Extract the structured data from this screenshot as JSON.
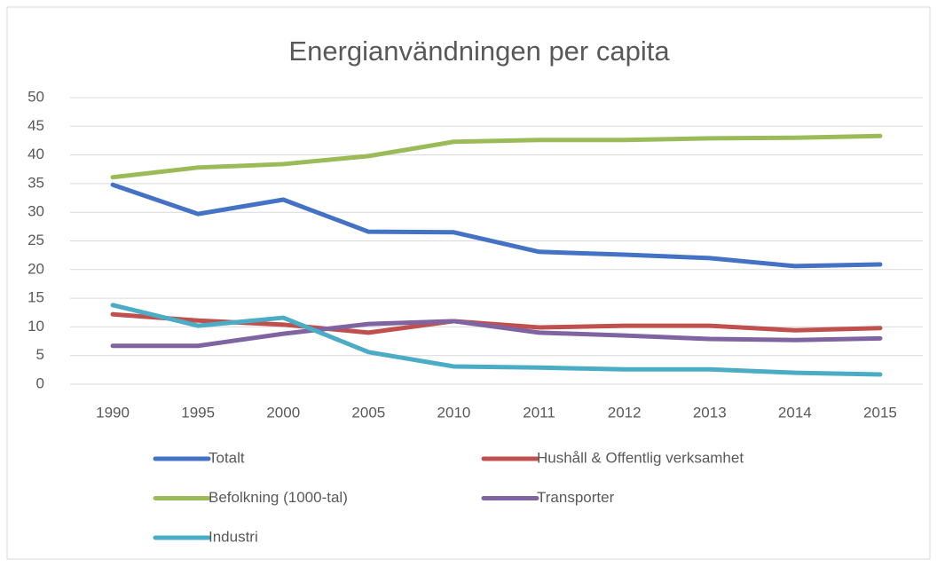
{
  "chart_data": {
    "type": "line",
    "title": "Energianvändningen per capita",
    "categories": [
      "1990",
      "1995",
      "2000",
      "2005",
      "2010",
      "2011",
      "2012",
      "2013",
      "2014",
      "2015"
    ],
    "series": [
      {
        "name": "Totalt",
        "color": "#4472c4",
        "values": [
          34.8,
          29.7,
          32.2,
          26.6,
          26.5,
          23.1,
          22.6,
          22.0,
          20.6,
          20.9
        ]
      },
      {
        "name": "Hushåll & Offentlig verksamhet",
        "color": "#c0504d",
        "values": [
          12.2,
          11.1,
          10.4,
          9.0,
          11.0,
          9.9,
          10.2,
          10.2,
          9.4,
          9.8
        ]
      },
      {
        "name": "Befolkning (1000-tal)",
        "color": "#9bbb59",
        "values": [
          36.1,
          37.8,
          38.4,
          39.8,
          42.3,
          42.6,
          42.6,
          42.9,
          43.0,
          43.3
        ]
      },
      {
        "name": "Transporter",
        "color": "#8064a2",
        "values": [
          6.7,
          6.7,
          8.8,
          10.5,
          11.0,
          9.0,
          8.5,
          7.9,
          7.7,
          8.0
        ]
      },
      {
        "name": "Industri",
        "color": "#4bacc6",
        "values": [
          13.8,
          10.2,
          11.6,
          5.6,
          3.1,
          2.9,
          2.6,
          2.6,
          2.0,
          1.7
        ]
      }
    ],
    "ylim": [
      0,
      50
    ],
    "yticks": [
      0,
      5,
      10,
      15,
      20,
      25,
      30,
      35,
      40,
      45,
      50
    ],
    "grid": true,
    "legend": "bottom"
  }
}
